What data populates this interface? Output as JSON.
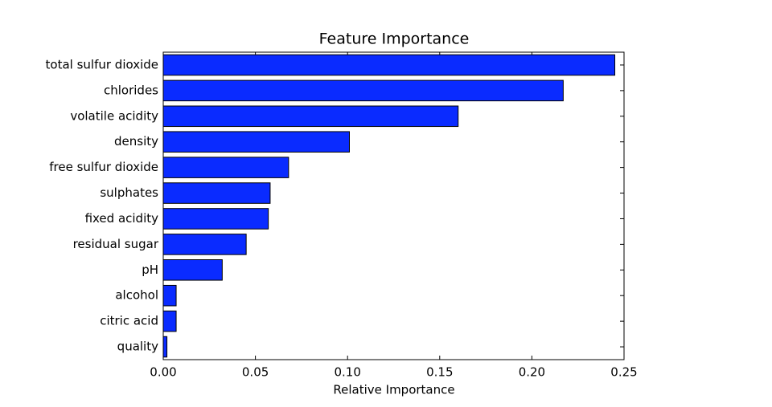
{
  "chart_data": {
    "type": "barh",
    "title": "Feature Importance",
    "x_label": "Relative Importance",
    "categories": [
      "total sulfur dioxide",
      "chlorides",
      "volatile acidity",
      "density",
      "free sulfur dioxide",
      "sulphates",
      "fixed acidity",
      "residual sugar",
      "pH",
      "alcohol",
      "citric acid",
      "quality"
    ],
    "values": [
      0.245,
      0.217,
      0.16,
      0.101,
      0.068,
      0.058,
      0.057,
      0.045,
      0.032,
      0.007,
      0.007,
      0.002
    ],
    "color": "#0a2bff",
    "xlim": [
      0,
      0.25
    ],
    "xticks": [
      {
        "value": 0,
        "label": "0.00"
      },
      {
        "value": 0.05,
        "label": "0.05"
      },
      {
        "value": 0.1,
        "label": "0.10"
      },
      {
        "value": 0.15,
        "label": "0.15"
      },
      {
        "value": 0.2,
        "label": "0.20"
      },
      {
        "value": 0.25,
        "label": "0.25"
      }
    ],
    "grid": false
  }
}
